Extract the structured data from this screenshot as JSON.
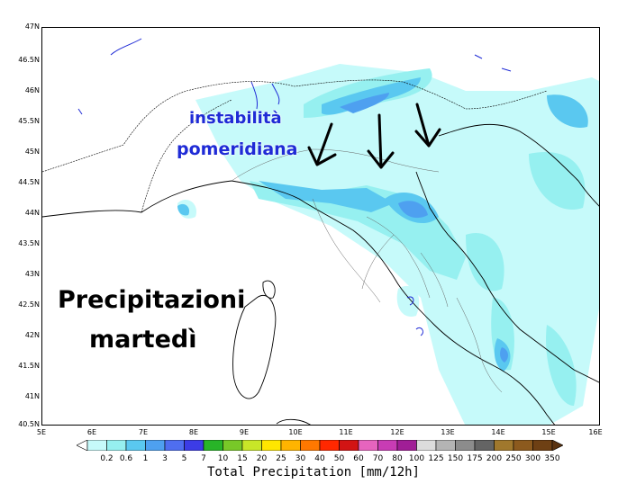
{
  "map": {
    "lat_labels": [
      "47N",
      "46.5N",
      "46N",
      "45.5N",
      "45N",
      "44.5N",
      "44N",
      "43.5N",
      "43N",
      "42.5N",
      "42N",
      "41.5N",
      "41N",
      "40.5N"
    ],
    "lon_labels": [
      "5E",
      "6E",
      "7E",
      "8E",
      "9E",
      "10E",
      "11E",
      "12E",
      "13E",
      "14E",
      "15E",
      "16E"
    ],
    "icons": [
      "arrow-down-icon"
    ]
  },
  "annotations": {
    "instability": "instabilità",
    "afternoon": "pomeridiana",
    "precip_title": "Precipitazioni",
    "precip_day": "martedì"
  },
  "colorbar": {
    "labels": [
      "0.2",
      "0.6",
      "1",
      "3",
      "5",
      "7",
      "10",
      "15",
      "20",
      "25",
      "30",
      "40",
      "50",
      "60",
      "70",
      "80",
      "100",
      "125",
      "150",
      "175",
      "200",
      "250",
      "300",
      "350"
    ],
    "colors": [
      "#c6fafa",
      "#96f0f0",
      "#5ac8f0",
      "#4ea0f0",
      "#4f6ef0",
      "#3c3ce6",
      "#28b428",
      "#78c828",
      "#c8e628",
      "#ffe600",
      "#ffb400",
      "#ff7800",
      "#ff2800",
      "#d21414",
      "#e664be",
      "#c83cb4",
      "#a01e96",
      "#dcdcdc",
      "#b4b4b4",
      "#8c8c8c",
      "#646464",
      "#a0782d",
      "#8c5a1e",
      "#6e4014"
    ],
    "title": "Total Precipitation [mm/12h]"
  }
}
